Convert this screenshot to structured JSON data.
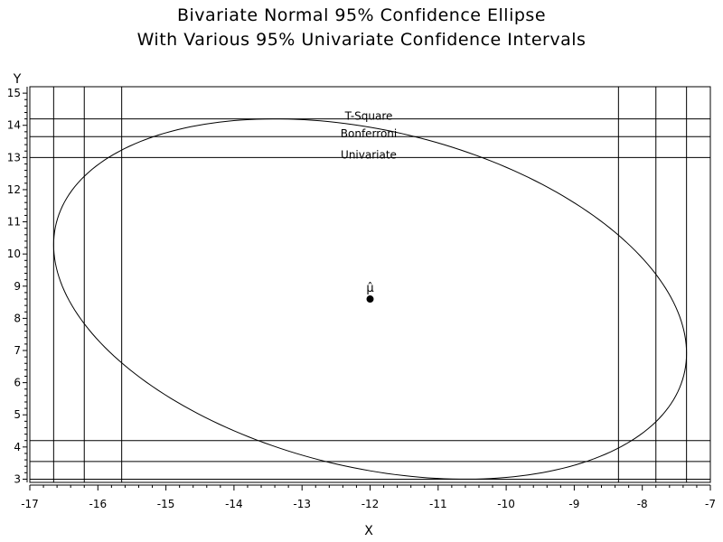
{
  "chart_data": {
    "type": "scatter",
    "title": "Bivariate Normal 95% Confidence Ellipse",
    "subtitle": "With Various 95% Univariate Confidence Intervals",
    "xlabel": "X",
    "ylabel": "Y",
    "xlim": [
      -17,
      -7
    ],
    "ylim": [
      2.9,
      15.2
    ],
    "xticks": [
      -17,
      -16,
      -15,
      -14,
      -13,
      -12,
      -11,
      -10,
      -9,
      -8,
      -7
    ],
    "xtick_labels": [
      "-17",
      "-16",
      "-15",
      "-14",
      "-13",
      "-12",
      "-11",
      "-10",
      "-9",
      "-8",
      "-7"
    ],
    "yticks": [
      3,
      4,
      5,
      6,
      7,
      8,
      9,
      10,
      11,
      12,
      13,
      14,
      15
    ],
    "ytick_labels": [
      "3",
      "4",
      "5",
      "6",
      "7",
      "8",
      "9",
      "10",
      "11",
      "12",
      "13",
      "14",
      "15"
    ],
    "mean_point": {
      "x": -12.0,
      "y": 8.6,
      "label": "μ̂"
    },
    "ellipse": {
      "center": [
        -12.0,
        8.6
      ],
      "x_extent": [
        -16.65,
        -7.35
      ],
      "y_extent": [
        3.0,
        14.2
      ],
      "x_at_y_max": -13.4,
      "x_at_y_min": -10.6
    },
    "intervals": [
      {
        "name": "T-Square",
        "x": [
          -16.65,
          -7.35
        ],
        "y": [
          3.0,
          14.2
        ]
      },
      {
        "name": "Bonferroni",
        "x": [
          -16.2,
          -7.8
        ],
        "y": [
          3.55,
          13.65
        ]
      },
      {
        "name": "Univariate",
        "x": [
          -15.65,
          -8.35
        ],
        "y": [
          4.2,
          13.0
        ]
      }
    ]
  }
}
